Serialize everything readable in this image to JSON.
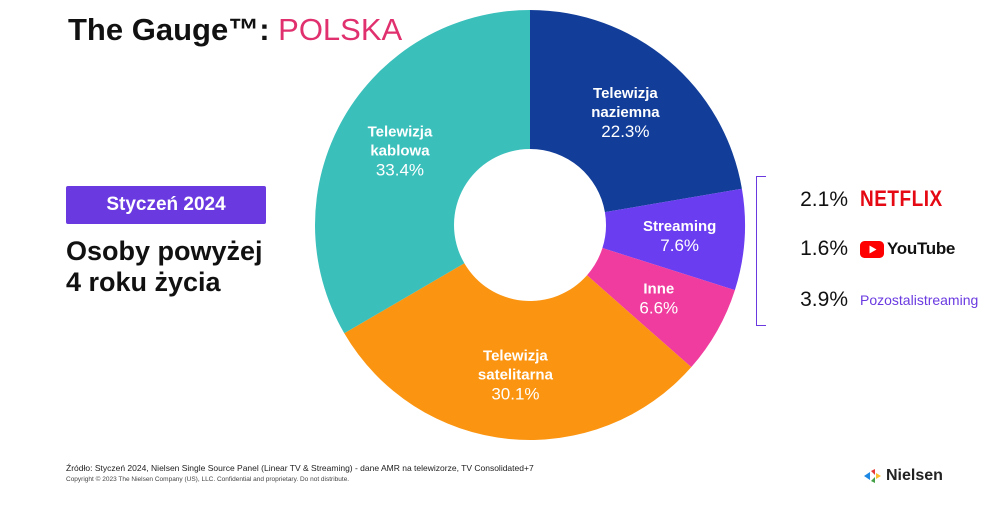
{
  "header": {
    "title_prefix": "The Gauge™: ",
    "title_country": "POLSKA"
  },
  "period_label": "Styczeń 2024",
  "audience_lines": [
    "Osoby powyżej",
    "4 roku życia"
  ],
  "colors": {
    "accent_pink": "#e0306e",
    "period_bg": "#6a3ae0",
    "streaming_purple": "#6a3ae0",
    "netflix_red": "#e50914",
    "youtube_red": "#ff0000"
  },
  "chart_data": {
    "type": "pie",
    "donut": true,
    "slices": [
      {
        "label_lines": [
          "Telewizja",
          "naziemna"
        ],
        "value": 22.3,
        "value_text": "22.3%",
        "color": "#123e9a"
      },
      {
        "label_lines": [
          "Streaming"
        ],
        "value": 7.6,
        "value_text": "7.6%",
        "color": "#6b3df0"
      },
      {
        "label_lines": [
          "Inne"
        ],
        "value": 6.6,
        "value_text": "6.6%",
        "color": "#f03c9e"
      },
      {
        "label_lines": [
          "Telewizja",
          "satelitarna"
        ],
        "value": 30.1,
        "value_text": "30.1%",
        "color": "#fb9511"
      },
      {
        "label_lines": [
          "Telewizja",
          "kablowa"
        ],
        "value": 33.4,
        "value_text": "33.4%",
        "color": "#3abfbb"
      }
    ]
  },
  "streaming_breakdown": [
    {
      "value_text": "2.1%",
      "brand": "NETFLIX",
      "icon": "netflix-logo"
    },
    {
      "value_text": "1.6%",
      "brand": "YouTube",
      "icon": "youtube-logo"
    },
    {
      "value_text": "3.9%",
      "brand_lines": [
        "Pozostali",
        "streaming"
      ]
    }
  ],
  "footer": {
    "source": "Źródło: Styczeń  2024, Nielsen Single Source Panel (Linear TV & Streaming) - dane AMR na telewizorze, TV Consolidated+7",
    "copyright": "Copyright © 2023 The Nielsen Company (US), LLC. Confidential and proprietary. Do not distribute.",
    "brand": "Nielsen"
  }
}
